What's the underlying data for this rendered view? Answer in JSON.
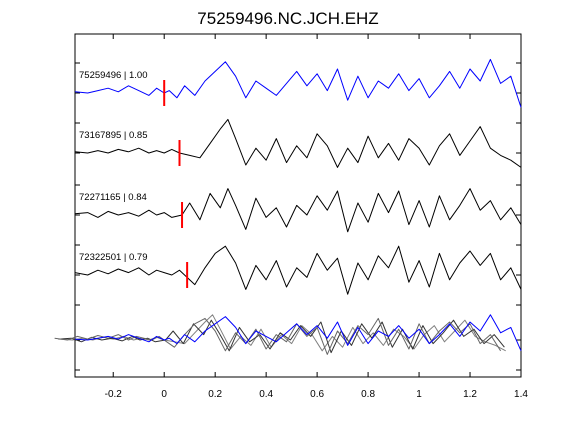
{
  "chart_data": {
    "type": "line",
    "title": "75259496.NC.JCH.EHZ",
    "xlabel": "",
    "ylabel": "",
    "xlim": [
      -0.35,
      1.4
    ],
    "x_ticks": [
      -0.2,
      0,
      0.2,
      0.4,
      0.6,
      0.8,
      1,
      1.2,
      1.4
    ],
    "x_tick_labels": [
      "-0.2",
      "0",
      "0.2",
      "0.4",
      "0.6",
      "0.8",
      "1",
      "1.2",
      "1.4"
    ],
    "grid": false,
    "colors": {
      "primary": "#0000ff",
      "trace": "#000000",
      "pick": "#ff0000",
      "overlay_gray": "#808080",
      "overlay_dark": "#333333"
    },
    "series": [
      {
        "label": "75259496 | 1.00",
        "pick": 0.0,
        "x": [
          -0.35,
          -0.3,
          -0.26,
          -0.22,
          -0.18,
          -0.14,
          -0.1,
          -0.06,
          -0.03,
          0.0,
          0.02,
          0.05,
          0.08,
          0.12,
          0.16,
          0.2,
          0.24,
          0.28,
          0.32,
          0.36,
          0.4,
          0.44,
          0.48,
          0.52,
          0.56,
          0.6,
          0.64,
          0.68,
          0.72,
          0.76,
          0.8,
          0.84,
          0.88,
          0.92,
          0.96,
          1.0,
          1.04,
          1.08,
          1.12,
          1.16,
          1.2,
          1.24,
          1.28,
          1.32,
          1.36,
          1.4
        ],
        "y": [
          0.05,
          0.0,
          0.1,
          0.2,
          0.05,
          0.3,
          0.1,
          -0.1,
          0.2,
          0.0,
          0.1,
          -0.2,
          0.3,
          -0.1,
          0.5,
          0.9,
          1.3,
          0.7,
          -0.2,
          0.5,
          0.2,
          -0.1,
          0.4,
          0.9,
          0.3,
          0.8,
          0.1,
          1.0,
          -0.3,
          0.7,
          -0.2,
          0.5,
          0.2,
          0.8,
          0.1,
          0.6,
          -0.2,
          0.3,
          0.9,
          0.2,
          1.0,
          0.5,
          1.4,
          0.4,
          0.7,
          -0.6
        ]
      },
      {
        "label": "73167895 | 0.85",
        "pick": 0.06,
        "x": [
          -0.35,
          -0.3,
          -0.26,
          -0.22,
          -0.18,
          -0.14,
          -0.1,
          -0.06,
          -0.03,
          0.0,
          0.03,
          0.06,
          0.1,
          0.14,
          0.18,
          0.22,
          0.25,
          0.28,
          0.32,
          0.36,
          0.4,
          0.44,
          0.48,
          0.52,
          0.56,
          0.6,
          0.64,
          0.68,
          0.72,
          0.76,
          0.8,
          0.84,
          0.88,
          0.92,
          0.96,
          1.0,
          1.04,
          1.08,
          1.12,
          1.16,
          1.2,
          1.24,
          1.28,
          1.32,
          1.36,
          1.4
        ],
        "y": [
          0.05,
          0.0,
          0.1,
          0.0,
          0.15,
          0.05,
          0.2,
          0.0,
          0.1,
          0.0,
          0.15,
          0.0,
          -0.1,
          -0.2,
          0.4,
          1.0,
          1.4,
          0.6,
          -0.5,
          0.2,
          -0.3,
          0.6,
          -0.4,
          0.3,
          -0.2,
          0.8,
          0.3,
          -0.6,
          0.2,
          -0.4,
          0.7,
          -0.2,
          0.4,
          -0.3,
          0.6,
          0.2,
          -0.5,
          0.3,
          0.8,
          -0.1,
          0.5,
          1.1,
          0.2,
          -0.1,
          -0.3,
          -0.6
        ]
      },
      {
        "label": "72271165 | 0.84",
        "pick": 0.07,
        "x": [
          -0.35,
          -0.3,
          -0.26,
          -0.22,
          -0.18,
          -0.14,
          -0.1,
          -0.06,
          -0.03,
          0.0,
          0.03,
          0.07,
          0.1,
          0.14,
          0.18,
          0.22,
          0.25,
          0.28,
          0.32,
          0.36,
          0.4,
          0.44,
          0.48,
          0.52,
          0.56,
          0.6,
          0.64,
          0.68,
          0.72,
          0.76,
          0.8,
          0.84,
          0.88,
          0.92,
          0.96,
          1.0,
          1.04,
          1.08,
          1.12,
          1.16,
          1.2,
          1.24,
          1.28,
          1.32,
          1.36,
          1.4
        ],
        "y": [
          0.05,
          0.1,
          -0.1,
          0.15,
          0.0,
          0.1,
          -0.05,
          0.2,
          0.0,
          0.1,
          -0.1,
          0.0,
          0.5,
          -0.2,
          0.9,
          0.3,
          1.1,
          0.4,
          -0.6,
          0.7,
          -0.1,
          0.3,
          -0.5,
          0.4,
          0.0,
          0.8,
          0.2,
          1.0,
          -0.7,
          0.5,
          -0.3,
          0.9,
          0.1,
          1.0,
          -0.4,
          0.6,
          -0.5,
          0.8,
          -0.2,
          0.4,
          1.1,
          0.2,
          0.6,
          -0.2,
          0.3,
          -0.4
        ]
      },
      {
        "label": "72322501 | 0.79",
        "pick": 0.09,
        "x": [
          -0.35,
          -0.3,
          -0.26,
          -0.22,
          -0.18,
          -0.14,
          -0.1,
          -0.06,
          -0.03,
          0.0,
          0.03,
          0.06,
          0.09,
          0.12,
          0.16,
          0.2,
          0.24,
          0.28,
          0.32,
          0.36,
          0.4,
          0.44,
          0.48,
          0.52,
          0.56,
          0.6,
          0.64,
          0.68,
          0.72,
          0.76,
          0.8,
          0.84,
          0.88,
          0.92,
          0.96,
          1.0,
          1.04,
          1.08,
          1.12,
          1.16,
          1.2,
          1.24,
          1.28,
          1.32,
          1.36,
          1.4
        ],
        "y": [
          0.1,
          0.0,
          0.2,
          0.05,
          0.25,
          0.1,
          0.3,
          0.0,
          0.2,
          0.1,
          0.0,
          0.2,
          -0.1,
          -0.4,
          0.3,
          0.9,
          1.2,
          0.5,
          -0.6,
          0.4,
          -0.2,
          0.6,
          -0.5,
          0.3,
          -0.1,
          0.9,
          0.2,
          0.7,
          -0.8,
          0.5,
          -0.2,
          0.8,
          0.3,
          1.2,
          -0.3,
          0.6,
          -0.5,
          0.9,
          -0.2,
          0.5,
          1.0,
          0.4,
          0.9,
          -0.2,
          0.3,
          -0.6
        ]
      }
    ]
  }
}
